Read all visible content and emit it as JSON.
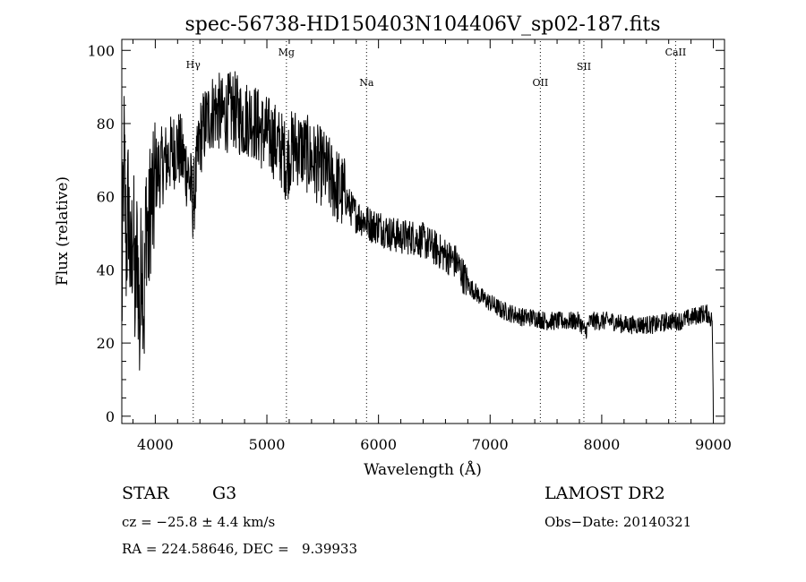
{
  "chart_data": {
    "type": "line",
    "title": "spec-56738-HD150403N104406V_sp02-187.fits",
    "xlabel": "Wavelength (Å)",
    "ylabel": "Flux (relative)",
    "xlim": [
      3700,
      9100
    ],
    "ylim": [
      -2,
      103
    ],
    "xticks": [
      4000,
      5000,
      6000,
      7000,
      8000,
      9000
    ],
    "yticks": [
      0,
      20,
      40,
      60,
      80,
      100
    ],
    "grid": false,
    "series": [
      {
        "x": [
          3700,
          3720,
          3740,
          3760,
          3780,
          3800,
          3820,
          3840,
          3860,
          3880,
          3900,
          3920,
          3940,
          3960,
          3980,
          4000,
          4050,
          4100,
          4150,
          4200,
          4250,
          4300,
          4340,
          4400,
          4450,
          4500,
          4550,
          4600,
          4650,
          4700,
          4750,
          4800,
          4850,
          4900,
          4950,
          5000,
          5050,
          5100,
          5150,
          5180,
          5200,
          5250,
          5300,
          5350,
          5400,
          5450,
          5500,
          5550,
          5600,
          5650,
          5700,
          5750,
          5800,
          5850,
          5900,
          5950,
          6000,
          6100,
          6200,
          6300,
          6400,
          6500,
          6600,
          6700,
          6800,
          6900,
          7000,
          7100,
          7200,
          7300,
          7400,
          7500,
          7600,
          7700,
          7800,
          7850,
          7900,
          8000,
          8100,
          8200,
          8300,
          8400,
          8500,
          8600,
          8700,
          8800,
          8900,
          8950,
          8990,
          9000
        ],
        "y": [
          28,
          72,
          45,
          60,
          35,
          55,
          30,
          48,
          22,
          50,
          28,
          58,
          45,
          62,
          55,
          66,
          68,
          70,
          72,
          74,
          70,
          66,
          58,
          76,
          80,
          83,
          84,
          82,
          83,
          84,
          82,
          81,
          82,
          80,
          78,
          77,
          76,
          74,
          72,
          68,
          72,
          74,
          73,
          72,
          70,
          69,
          68,
          66,
          64,
          62,
          60,
          57,
          55,
          54,
          53,
          52,
          52,
          50,
          49,
          49,
          48,
          46,
          44,
          42,
          36,
          33,
          31,
          29,
          28,
          27,
          27,
          26,
          26,
          26,
          26,
          23,
          26,
          26,
          26,
          25,
          25,
          25,
          25,
          26,
          26,
          27,
          28,
          28,
          26,
          2
        ]
      }
    ],
    "lines": [
      {
        "label": "Hγ",
        "x": 4340
      },
      {
        "label": "Mg",
        "x": 5175
      },
      {
        "label": "Na",
        "x": 5893
      },
      {
        "label": "OII",
        "x": 7450
      },
      {
        "label": "SII",
        "x": 7840
      },
      {
        "label": "CaII",
        "x": 8662
      }
    ]
  },
  "info": {
    "object_class": "STAR",
    "subclass": "G3",
    "survey": "LAMOST DR2",
    "cz": "cz = −25.8 ± 4.4 km/s",
    "obs_date": "Obs−Date: 20140321",
    "radec": "RA = 224.58646, DEC =   9.39933"
  }
}
